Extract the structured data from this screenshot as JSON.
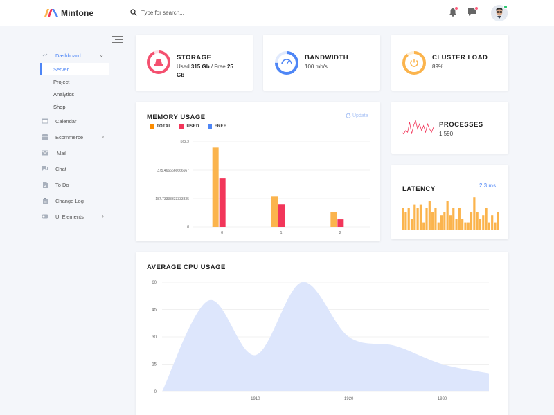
{
  "app": {
    "brand": "Mintone"
  },
  "search": {
    "placeholder": "Type for search..."
  },
  "sidebar": {
    "items": [
      {
        "label": "Dashboard",
        "icon": "dashboard-icon"
      },
      {
        "label": "Calendar",
        "icon": "calendar-icon"
      },
      {
        "label": "Ecommerce",
        "icon": "store-icon"
      },
      {
        "label": "Mail",
        "icon": "mail-icon"
      },
      {
        "label": "Chat",
        "icon": "chat-icon"
      },
      {
        "label": "To Do",
        "icon": "todo-icon"
      },
      {
        "label": "Change Log",
        "icon": "changelog-icon"
      },
      {
        "label": "UI Elements",
        "icon": "ui-elements-icon"
      }
    ],
    "dashboard_sub": [
      "Server",
      "Project",
      "Analytics",
      "Shop"
    ]
  },
  "stats": {
    "storage": {
      "title": "STORAGE",
      "used_prefix": "Used ",
      "used": "315 Gb",
      "sep": " / Free ",
      "free": "25",
      "free_unit": "Gb"
    },
    "bandwidth": {
      "title": "BANDWIDTH",
      "value": "100 mb/s"
    },
    "cluster": {
      "title": "CLUSTER LOAD",
      "value": "89%",
      "fill": 0.89
    },
    "processes": {
      "title": "PROCESSES",
      "value": "1,590"
    },
    "latency": {
      "title": "LATENCY",
      "value": "2.3 ms"
    }
  },
  "memory": {
    "title": "MEMORY USAGE",
    "update_label": "Update",
    "legend": [
      "TOTAL",
      "USED",
      "FREE"
    ]
  },
  "cpu": {
    "title": "AVERAGE CPU USAGE"
  },
  "colors": {
    "accent": "#4e86f6",
    "total": "#fbb44d",
    "used": "#f2365a",
    "free": "#4e86f6",
    "area": "#dde6fc",
    "storage": "#f4506f",
    "bandwidth": "#4e86f6",
    "cluster": "#fbb44d"
  },
  "chart_data": [
    {
      "type": "bar",
      "title": "MEMORY USAGE",
      "categories": [
        "0",
        "1",
        "2"
      ],
      "series": [
        {
          "name": "TOTAL",
          "values": [
            525,
            200,
            100
          ]
        },
        {
          "name": "USED",
          "values": [
            320,
            150,
            50
          ]
        },
        {
          "name": "FREE",
          "values": [
            0,
            0,
            0
          ]
        }
      ],
      "ylim": [
        0,
        563.2
      ],
      "yticks": [
        "0",
        "187.73333333333335",
        "375.4666666666667",
        "563.2"
      ]
    },
    {
      "type": "area",
      "title": "AVERAGE CPU USAGE",
      "x": [
        1900,
        1905,
        1910,
        1915,
        1920,
        1925,
        1930,
        1935
      ],
      "values": [
        0,
        50,
        20,
        60,
        30,
        25,
        15,
        10
      ],
      "ylim": [
        0,
        60
      ],
      "yticks": [
        "0",
        "15",
        "30",
        "45",
        "60"
      ],
      "xticks": [
        "1910",
        "1920",
        "1930"
      ]
    },
    {
      "type": "bar",
      "title": "LATENCY",
      "values": [
        6,
        5,
        6,
        3,
        7,
        6,
        7,
        2,
        6,
        8,
        5,
        6,
        2,
        4,
        5,
        8,
        4,
        6,
        3,
        6,
        3,
        2,
        2,
        5,
        9,
        5,
        3,
        4,
        6,
        2,
        4,
        2,
        5
      ]
    },
    {
      "type": "line",
      "title": "PROCESSES",
      "values": [
        2,
        1,
        3,
        2,
        8,
        1,
        6,
        9,
        4,
        7,
        3,
        6,
        2,
        7,
        4,
        2,
        5
      ]
    }
  ]
}
